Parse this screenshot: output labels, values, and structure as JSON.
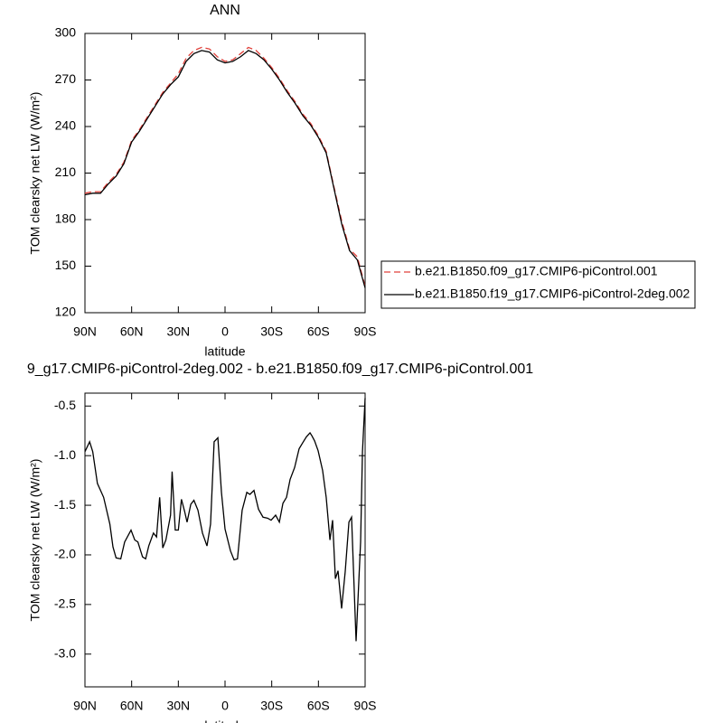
{
  "chart_data": [
    {
      "type": "line",
      "title": "ANN",
      "x_label": "latitude",
      "y_label": "TOM clearsky net LW (W/m²)",
      "x": [
        90,
        85,
        80,
        75,
        70,
        65,
        60,
        55,
        50,
        45,
        40,
        35,
        30,
        25,
        20,
        15,
        10,
        5,
        0,
        -5,
        -10,
        -15,
        -20,
        -25,
        -30,
        -35,
        -40,
        -45,
        -50,
        -55,
        -60,
        -65,
        -70,
        -75,
        -80,
        -85,
        -90
      ],
      "series": [
        {
          "name": "b.e21.B1850.f09_g17.CMIP6-piControl.001",
          "color": "#e0403a",
          "dashed": true,
          "values": [
            197,
            198,
            198,
            204,
            209,
            217,
            231,
            238,
            246,
            254,
            262,
            268,
            274,
            284,
            289,
            291,
            290,
            285,
            282,
            283,
            287,
            291,
            289,
            284,
            278,
            271,
            263,
            256,
            248,
            242,
            234,
            224,
            201,
            179,
            161,
            156,
            137
          ]
        },
        {
          "name": "b.e21.B1850.f19_g17.CMIP6-piControl-2deg.002",
          "color": "#000000",
          "dashed": false,
          "values": [
            196,
            197,
            197,
            203,
            208,
            216,
            230,
            237,
            245,
            253,
            261,
            267,
            272,
            282,
            287,
            289,
            288,
            283,
            281,
            282,
            285,
            289,
            287,
            283,
            277,
            270,
            262,
            255,
            247,
            241,
            233,
            223,
            200,
            177,
            160,
            154,
            136
          ]
        }
      ],
      "xlim": [
        90,
        -90
      ],
      "xticks": [
        {
          "value": 90,
          "label": "90N"
        },
        {
          "value": 60,
          "label": "60N"
        },
        {
          "value": 30,
          "label": "30N"
        },
        0,
        {
          "value": -30,
          "label": "30S"
        },
        {
          "value": -60,
          "label": "60S"
        },
        {
          "value": -90,
          "label": "90S"
        }
      ],
      "ylim": [
        120,
        300
      ],
      "yticks": [
        120,
        150,
        180,
        210,
        240,
        270,
        300
      ],
      "legend": "right"
    },
    {
      "type": "line",
      "title": "9_g17.CMIP6-piControl-2deg.002 - b.e21.B1850.f09_g17.CMIP6-piControl.001",
      "x_label": "latitude",
      "y_label": "TOM clearsky net LW (W/m²)",
      "x": [
        90,
        87,
        85,
        82,
        78,
        74,
        72,
        70,
        67,
        64.5,
        60.4,
        58,
        56,
        53,
        51,
        49,
        46,
        44,
        42,
        40,
        38,
        35,
        34,
        32,
        30,
        28,
        26,
        24.4,
        22,
        20,
        17.4,
        14.5,
        11.6,
        9.3,
        7,
        4.6,
        2.3,
        0,
        -3.5,
        -5.8,
        -8,
        -11,
        -14,
        -16,
        -18.6,
        -21.5,
        -24.4,
        -27.3,
        -29.6,
        -32.5,
        -34.9,
        -37.2,
        -39.5,
        -41.8,
        -44.7,
        -47.6,
        -49.9,
        -52.3,
        -54.6,
        -55.8,
        -57.5,
        -59.8,
        -62.7,
        -65,
        -67.4,
        -69.1,
        -70.9,
        -72.6,
        -74.9,
        -77.2,
        -79.6,
        -81.3,
        -84.2,
        -87.1,
        -88.3,
        -90
      ],
      "values": [
        -0.96,
        -0.86,
        -0.96,
        -1.28,
        -1.42,
        -1.69,
        -1.92,
        -2.03,
        -2.04,
        -1.87,
        -1.75,
        -1.85,
        -1.87,
        -2.02,
        -2.04,
        -1.91,
        -1.78,
        -1.82,
        -1.42,
        -1.93,
        -1.85,
        -1.6,
        -1.16,
        -1.75,
        -1.75,
        -1.44,
        -1.56,
        -1.67,
        -1.49,
        -1.45,
        -1.55,
        -1.78,
        -1.91,
        -1.69,
        -0.86,
        -0.82,
        -1.37,
        -1.74,
        -1.96,
        -2.05,
        -2.04,
        -1.55,
        -1.37,
        -1.39,
        -1.35,
        -1.54,
        -1.62,
        -1.63,
        -1.65,
        -1.6,
        -1.67,
        -1.48,
        -1.42,
        -1.24,
        -1.12,
        -0.93,
        -0.87,
        -0.81,
        -0.77,
        -0.8,
        -0.85,
        -0.95,
        -1.15,
        -1.42,
        -1.85,
        -1.65,
        -2.24,
        -2.16,
        -2.54,
        -2.17,
        -1.67,
        -1.62,
        -2.87,
        -1.87,
        -0.96,
        -0.42
      ],
      "color": "#000000",
      "xlim": [
        90,
        -90
      ],
      "xticks": [
        {
          "value": 90,
          "label": "90N"
        },
        {
          "value": 60,
          "label": "60N"
        },
        {
          "value": 30,
          "label": "30N"
        },
        0,
        {
          "value": -30,
          "label": "30S"
        },
        {
          "value": -60,
          "label": "60S"
        },
        {
          "value": -90,
          "label": "90S"
        }
      ],
      "ylim": [
        -3.33,
        -0.37
      ],
      "yticks": [
        -0.5,
        {
          "value": -1,
          "label": "-1.0"
        },
        -1.5,
        {
          "value": -2,
          "label": "-2.0"
        },
        -2.5,
        {
          "value": -3,
          "label": "-3.0"
        }
      ]
    }
  ]
}
